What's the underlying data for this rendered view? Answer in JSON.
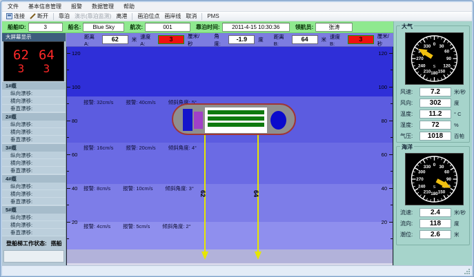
{
  "colors": {
    "info_bar_green": "#8FE98F",
    "alarm_red": "#EE1111",
    "led_red": "#FF2828",
    "needle_yellow": "#F0C010",
    "band_blues": [
      "#2F2FD8",
      "#5C5CE0",
      "#6B6BE4",
      "#7D7DE8",
      "#8F8FEE"
    ],
    "quay_gray": "#B2B2DA",
    "hull_gray": "#8F8F8F",
    "hull_outline": "#A03535",
    "panel_teal": "#A6D4CB"
  },
  "menu": {
    "items": [
      "文件",
      "基本信息管理",
      "报警",
      "数据管理",
      "帮助"
    ]
  },
  "toolbar": {
    "items": [
      "连接",
      "断开",
      "靠泊",
      "演示(靠泊监测)",
      "离港",
      "画泊位点",
      "画岸线",
      "取消",
      "PMS"
    ]
  },
  "info_bar": {
    "ship_id_label": "船舶ID:",
    "ship_id": "3",
    "ship_name_label": "船名:",
    "ship_name": "Blue Sky",
    "voyage_label": "航次:",
    "voyage": "001",
    "berth_time_label": "靠泊时间:",
    "berth_time": "2011-4-15 10:30:36",
    "pilot_label": "领航员:",
    "pilot": "张涛"
  },
  "sidebar": {
    "display_title": "大屏幕显示",
    "led": {
      "distance_a": "62",
      "distance_b": "64",
      "speed_a": "3",
      "speed_b": "3"
    },
    "groups": [
      {
        "title": "1#缆",
        "items": [
          "纵向漂移:",
          "横向漂移:",
          "垂直漂移:"
        ]
      },
      {
        "title": "2#缆",
        "items": [
          "纵向漂移:",
          "横向漂移:",
          "垂直漂移:"
        ]
      },
      {
        "title": "3#缆",
        "items": [
          "纵向漂移:",
          "横向漂移:",
          "垂直漂移:"
        ]
      },
      {
        "title": "4#缆",
        "items": [
          "纵向漂移:",
          "横向漂移:",
          "垂直漂移:"
        ]
      },
      {
        "title": "5#缆",
        "items": [
          "纵向漂移:",
          "横向漂移:",
          "垂直漂移:"
        ]
      }
    ],
    "gangway_label": "登船梯工作状态:",
    "gangway_value": "搭船"
  },
  "measure_bar": {
    "distance_a_label": "距离A:",
    "distance_a": "62",
    "distance_a_unit": "米",
    "speed_a_label": "速度A:",
    "speed_a": "3",
    "speed_a_unit": "厘米/秒",
    "angle_label": "角度:",
    "angle": "-1.9",
    "angle_unit": "度",
    "distance_b_label": "距离B:",
    "distance_b": "64",
    "distance_b_unit": "米",
    "speed_b_label": "速度B:",
    "speed_b": "3",
    "speed_b_unit": "厘米/秒"
  },
  "chart": {
    "ruler_ticks": [
      "120",
      "100",
      "80",
      "60",
      "40",
      "20"
    ],
    "alarm_lines": [
      {
        "warn_a": "报警: 32cm/s",
        "warn_b": "报警: 40cm/s",
        "tilt": "倾斜角度: 5°"
      },
      {
        "warn_a": "报警: 16cm/s",
        "warn_b": "报警: 20cm/s",
        "tilt": "倾斜角度: 4°"
      },
      {
        "warn_a": "报警: 8cm/s",
        "warn_b": "报警: 10cm/s",
        "tilt": "倾斜角度: 3°"
      },
      {
        "warn_a": "报警: 4cm/s",
        "warn_b": "报警: 5cm/s",
        "tilt": "倾斜角度: 2°"
      }
    ],
    "line_a_label": "62",
    "line_b_label": "64"
  },
  "environment": {
    "atmosphere": {
      "title": "大气",
      "needle_deg": 302,
      "rows": [
        {
          "label": "风速:",
          "value": "7.2",
          "unit": "米/秒"
        },
        {
          "label": "风向:",
          "value": "302",
          "unit": "度"
        },
        {
          "label": "温度:",
          "value": "11.2",
          "unit": "° C"
        },
        {
          "label": "湿度:",
          "value": "72",
          "unit": "%"
        },
        {
          "label": "气压:",
          "value": "1018",
          "unit": "百帕"
        }
      ]
    },
    "ocean": {
      "title": "海洋",
      "needle_deg": 118,
      "rows": [
        {
          "label": "流速:",
          "value": "2.4",
          "unit": "米/秒"
        },
        {
          "label": "流向:",
          "value": "118",
          "unit": "度"
        },
        {
          "label": "潮位:",
          "value": "2.6",
          "unit": "米"
        }
      ]
    },
    "gauge": {
      "numbers": [
        "0",
        "30",
        "60",
        "90",
        "120",
        "150",
        "180",
        "210",
        "240",
        "270",
        "300",
        "330"
      ],
      "south_label": "S"
    }
  }
}
